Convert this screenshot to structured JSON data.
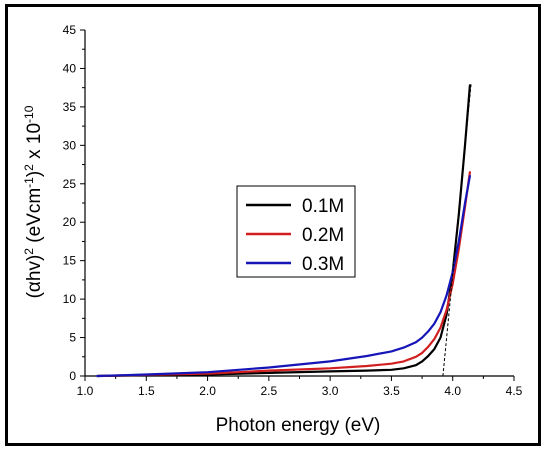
{
  "chart_data": {
    "type": "line",
    "xlabel": "Photon energy (eV)",
    "ylabel_parts": [
      "(",
      "α",
      "hv)",
      "2",
      " (eVcm",
      "-1",
      ")",
      "2",
      " x 10",
      "-10"
    ],
    "xlim": [
      1.0,
      4.5
    ],
    "ylim": [
      0,
      45
    ],
    "xticks": [
      "1.0",
      "1.5",
      "2.0",
      "2.5",
      "3.0",
      "3.5",
      "4.0",
      "4.5"
    ],
    "yticks": [
      "0",
      "5",
      "10",
      "15",
      "20",
      "25",
      "30",
      "35",
      "40",
      "45"
    ],
    "grid": false,
    "legend_position": "center",
    "series": [
      {
        "name": "0.1M",
        "color": "#000000",
        "x": [
          1.1,
          1.5,
          2.0,
          2.5,
          3.0,
          3.3,
          3.5,
          3.6,
          3.7,
          3.75,
          3.8,
          3.85,
          3.9,
          3.95,
          4.0,
          4.05,
          4.1,
          4.14
        ],
        "y": [
          0.0,
          0.1,
          0.2,
          0.4,
          0.6,
          0.7,
          0.8,
          1.0,
          1.4,
          1.9,
          2.6,
          3.5,
          5.0,
          8.0,
          13.5,
          21.0,
          30.0,
          37.8
        ]
      },
      {
        "name": "0.2M",
        "color": "#d11f1f",
        "x": [
          1.1,
          1.5,
          2.0,
          2.5,
          3.0,
          3.3,
          3.5,
          3.6,
          3.7,
          3.75,
          3.8,
          3.85,
          3.9,
          3.95,
          4.0,
          4.05,
          4.1,
          4.14
        ],
        "y": [
          0.0,
          0.15,
          0.3,
          0.7,
          1.0,
          1.3,
          1.6,
          1.9,
          2.5,
          3.0,
          3.8,
          4.8,
          6.3,
          8.6,
          12.0,
          16.5,
          22.0,
          26.5
        ]
      },
      {
        "name": "0.3M",
        "color": "#1515b8",
        "x": [
          1.1,
          1.5,
          2.0,
          2.5,
          3.0,
          3.3,
          3.5,
          3.6,
          3.7,
          3.75,
          3.8,
          3.85,
          3.9,
          3.95,
          4.0,
          4.05,
          4.1,
          4.14
        ],
        "y": [
          0.0,
          0.2,
          0.5,
          1.1,
          1.9,
          2.6,
          3.2,
          3.7,
          4.4,
          5.0,
          5.8,
          6.8,
          8.3,
          10.5,
          13.5,
          17.5,
          22.5,
          26.0
        ]
      }
    ],
    "annotations": [
      {
        "type": "tangent-line",
        "style": "dashed",
        "color": "#000000",
        "x": [
          3.92,
          4.15
        ],
        "y": [
          0,
          38
        ]
      }
    ]
  }
}
